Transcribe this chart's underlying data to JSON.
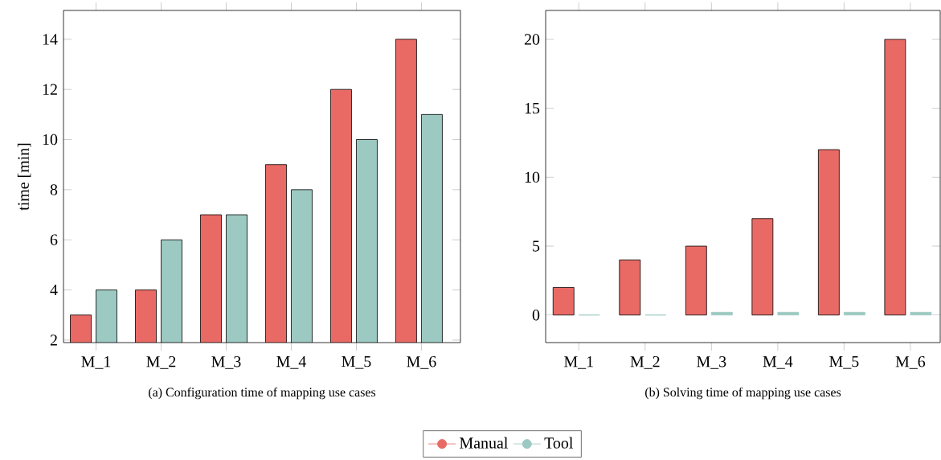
{
  "chart_data": [
    {
      "type": "bar",
      "title": "(a) Configuration time of mapping use cases",
      "ylabel": "time [min]",
      "categories": [
        "M_1",
        "M_2",
        "M_3",
        "M_4",
        "M_5",
        "M_6"
      ],
      "series": [
        {
          "name": "Manual",
          "color": "#e96a65",
          "values": [
            3,
            4,
            7,
            9,
            12,
            14
          ]
        },
        {
          "name": "Tool",
          "color": "#9cc9c1",
          "values": [
            4,
            6,
            7,
            8,
            10,
            11
          ]
        }
      ],
      "ylim": [
        1.9,
        15.15
      ],
      "yticks": [
        2,
        4,
        6,
        8,
        10,
        12,
        14
      ],
      "legend": "bottom"
    },
    {
      "type": "bar",
      "title": "(b) Solving time of mapping use cases",
      "categories": [
        "M_1",
        "M_2",
        "M_3",
        "M_4",
        "M_5",
        "M_6"
      ],
      "series": [
        {
          "color": "#e96a65",
          "values": [
            2,
            4,
            5,
            7,
            12,
            20
          ]
        },
        {
          "color": "#9cc9c1",
          "values": [
            0,
            0,
            0.2,
            0.2,
            0.2,
            0.2
          ]
        }
      ],
      "ylim": [
        -2,
        22.1
      ],
      "yticks": [
        0,
        5,
        10,
        15,
        20
      ]
    }
  ]
}
